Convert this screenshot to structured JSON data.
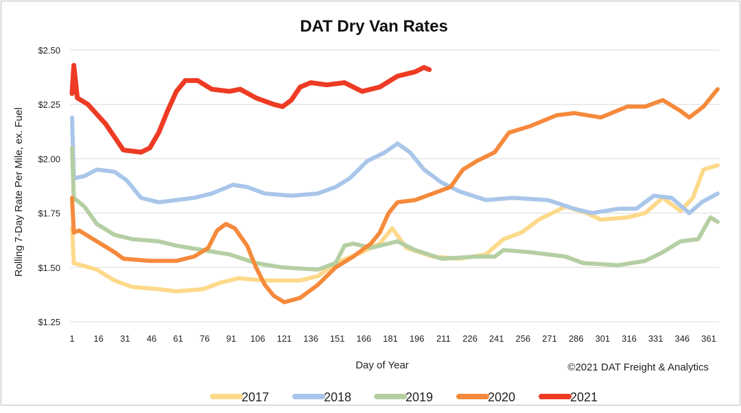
{
  "chart_data": {
    "type": "line",
    "title": "DAT Dry Van Rates",
    "xlabel": "Day of Year",
    "ylabel": "Rolling 7-Day Rate Per Mile, ex. Fuel",
    "credit": "©2021 DAT Freight & Analytics",
    "xlim": [
      1,
      366
    ],
    "ylim": [
      1.25,
      2.5
    ],
    "x_ticks": [
      "1",
      "16",
      "31",
      "46",
      "61",
      "76",
      "91",
      "106",
      "121",
      "136",
      "151",
      "166",
      "181",
      "196",
      "211",
      "226",
      "241",
      "256",
      "271",
      "286",
      "301",
      "316",
      "331",
      "346",
      "361"
    ],
    "y_ticks": [
      "$1.25",
      "$1.50",
      "$1.75",
      "$2.00",
      "$2.25",
      "$2.50"
    ],
    "grid": true,
    "legend_position": "bottom",
    "series": [
      {
        "name": "2017",
        "color": "#fdd98a",
        "points": [
          [
            1,
            1.68
          ],
          [
            2,
            1.52
          ],
          [
            15,
            1.49
          ],
          [
            25,
            1.44
          ],
          [
            35,
            1.41
          ],
          [
            50,
            1.4
          ],
          [
            60,
            1.39
          ],
          [
            75,
            1.4
          ],
          [
            85,
            1.43
          ],
          [
            95,
            1.45
          ],
          [
            110,
            1.44
          ],
          [
            130,
            1.44
          ],
          [
            140,
            1.46
          ],
          [
            150,
            1.52
          ],
          [
            165,
            1.57
          ],
          [
            175,
            1.61
          ],
          [
            182,
            1.68
          ],
          [
            190,
            1.59
          ],
          [
            205,
            1.55
          ],
          [
            220,
            1.54
          ],
          [
            235,
            1.56
          ],
          [
            245,
            1.63
          ],
          [
            255,
            1.66
          ],
          [
            265,
            1.72
          ],
          [
            280,
            1.78
          ],
          [
            292,
            1.75
          ],
          [
            300,
            1.72
          ],
          [
            315,
            1.73
          ],
          [
            325,
            1.75
          ],
          [
            335,
            1.82
          ],
          [
            345,
            1.76
          ],
          [
            352,
            1.82
          ],
          [
            358,
            1.95
          ],
          [
            366,
            1.97
          ]
        ]
      },
      {
        "name": "2018",
        "color": "#a9c6ea",
        "points": [
          [
            1,
            2.19
          ],
          [
            2,
            1.91
          ],
          [
            8,
            1.92
          ],
          [
            15,
            1.95
          ],
          [
            25,
            1.94
          ],
          [
            32,
            1.9
          ],
          [
            40,
            1.82
          ],
          [
            50,
            1.8
          ],
          [
            60,
            1.81
          ],
          [
            70,
            1.82
          ],
          [
            80,
            1.84
          ],
          [
            92,
            1.88
          ],
          [
            100,
            1.87
          ],
          [
            110,
            1.84
          ],
          [
            125,
            1.83
          ],
          [
            140,
            1.84
          ],
          [
            150,
            1.87
          ],
          [
            158,
            1.91
          ],
          [
            168,
            1.99
          ],
          [
            178,
            2.03
          ],
          [
            185,
            2.07
          ],
          [
            192,
            2.03
          ],
          [
            200,
            1.95
          ],
          [
            210,
            1.89
          ],
          [
            220,
            1.85
          ],
          [
            235,
            1.81
          ],
          [
            250,
            1.82
          ],
          [
            270,
            1.81
          ],
          [
            285,
            1.77
          ],
          [
            295,
            1.75
          ],
          [
            310,
            1.77
          ],
          [
            320,
            1.77
          ],
          [
            330,
            1.83
          ],
          [
            340,
            1.82
          ],
          [
            350,
            1.75
          ],
          [
            357,
            1.8
          ],
          [
            366,
            1.84
          ]
        ]
      },
      {
        "name": "2019",
        "color": "#b5cfa3",
        "points": [
          [
            1,
            2.05
          ],
          [
            2,
            1.82
          ],
          [
            8,
            1.78
          ],
          [
            15,
            1.7
          ],
          [
            25,
            1.65
          ],
          [
            35,
            1.63
          ],
          [
            50,
            1.62
          ],
          [
            60,
            1.6
          ],
          [
            75,
            1.58
          ],
          [
            90,
            1.56
          ],
          [
            105,
            1.52
          ],
          [
            120,
            1.5
          ],
          [
            140,
            1.49
          ],
          [
            150,
            1.52
          ],
          [
            155,
            1.6
          ],
          [
            160,
            1.61
          ],
          [
            170,
            1.59
          ],
          [
            185,
            1.62
          ],
          [
            195,
            1.58
          ],
          [
            210,
            1.54
          ],
          [
            230,
            1.55
          ],
          [
            240,
            1.55
          ],
          [
            245,
            1.58
          ],
          [
            260,
            1.57
          ],
          [
            280,
            1.55
          ],
          [
            290,
            1.52
          ],
          [
            310,
            1.51
          ],
          [
            325,
            1.53
          ],
          [
            335,
            1.57
          ],
          [
            345,
            1.62
          ],
          [
            355,
            1.63
          ],
          [
            362,
            1.73
          ],
          [
            366,
            1.71
          ]
        ]
      },
      {
        "name": "2020",
        "color": "#f58a3c",
        "points": [
          [
            1,
            1.82
          ],
          [
            2,
            1.66
          ],
          [
            5,
            1.67
          ],
          [
            15,
            1.62
          ],
          [
            25,
            1.57
          ],
          [
            30,
            1.54
          ],
          [
            45,
            1.53
          ],
          [
            60,
            1.53
          ],
          [
            70,
            1.55
          ],
          [
            78,
            1.59
          ],
          [
            83,
            1.67
          ],
          [
            88,
            1.7
          ],
          [
            93,
            1.68
          ],
          [
            100,
            1.6
          ],
          [
            105,
            1.5
          ],
          [
            110,
            1.42
          ],
          [
            115,
            1.37
          ],
          [
            121,
            1.34
          ],
          [
            130,
            1.36
          ],
          [
            140,
            1.42
          ],
          [
            150,
            1.5
          ],
          [
            160,
            1.55
          ],
          [
            170,
            1.61
          ],
          [
            175,
            1.66
          ],
          [
            180,
            1.75
          ],
          [
            185,
            1.8
          ],
          [
            195,
            1.81
          ],
          [
            205,
            1.84
          ],
          [
            215,
            1.87
          ],
          [
            222,
            1.95
          ],
          [
            230,
            1.99
          ],
          [
            240,
            2.03
          ],
          [
            248,
            2.12
          ],
          [
            260,
            2.15
          ],
          [
            275,
            2.2
          ],
          [
            285,
            2.21
          ],
          [
            300,
            2.19
          ],
          [
            315,
            2.24
          ],
          [
            325,
            2.24
          ],
          [
            335,
            2.27
          ],
          [
            345,
            2.22
          ],
          [
            350,
            2.19
          ],
          [
            358,
            2.24
          ],
          [
            366,
            2.32
          ]
        ]
      },
      {
        "name": "2021",
        "color": "#ee3b24",
        "points": [
          [
            1,
            2.3
          ],
          [
            2,
            2.43
          ],
          [
            4,
            2.28
          ],
          [
            10,
            2.25
          ],
          [
            20,
            2.16
          ],
          [
            25,
            2.1
          ],
          [
            30,
            2.04
          ],
          [
            40,
            2.03
          ],
          [
            45,
            2.05
          ],
          [
            50,
            2.12
          ],
          [
            55,
            2.22
          ],
          [
            60,
            2.31
          ],
          [
            65,
            2.36
          ],
          [
            72,
            2.36
          ],
          [
            80,
            2.32
          ],
          [
            90,
            2.31
          ],
          [
            96,
            2.32
          ],
          [
            105,
            2.28
          ],
          [
            115,
            2.25
          ],
          [
            120,
            2.24
          ],
          [
            125,
            2.27
          ],
          [
            130,
            2.33
          ],
          [
            136,
            2.35
          ],
          [
            145,
            2.34
          ],
          [
            155,
            2.35
          ],
          [
            165,
            2.31
          ],
          [
            175,
            2.33
          ],
          [
            185,
            2.38
          ],
          [
            195,
            2.4
          ],
          [
            200,
            2.42
          ],
          [
            203,
            2.41
          ]
        ]
      }
    ]
  }
}
